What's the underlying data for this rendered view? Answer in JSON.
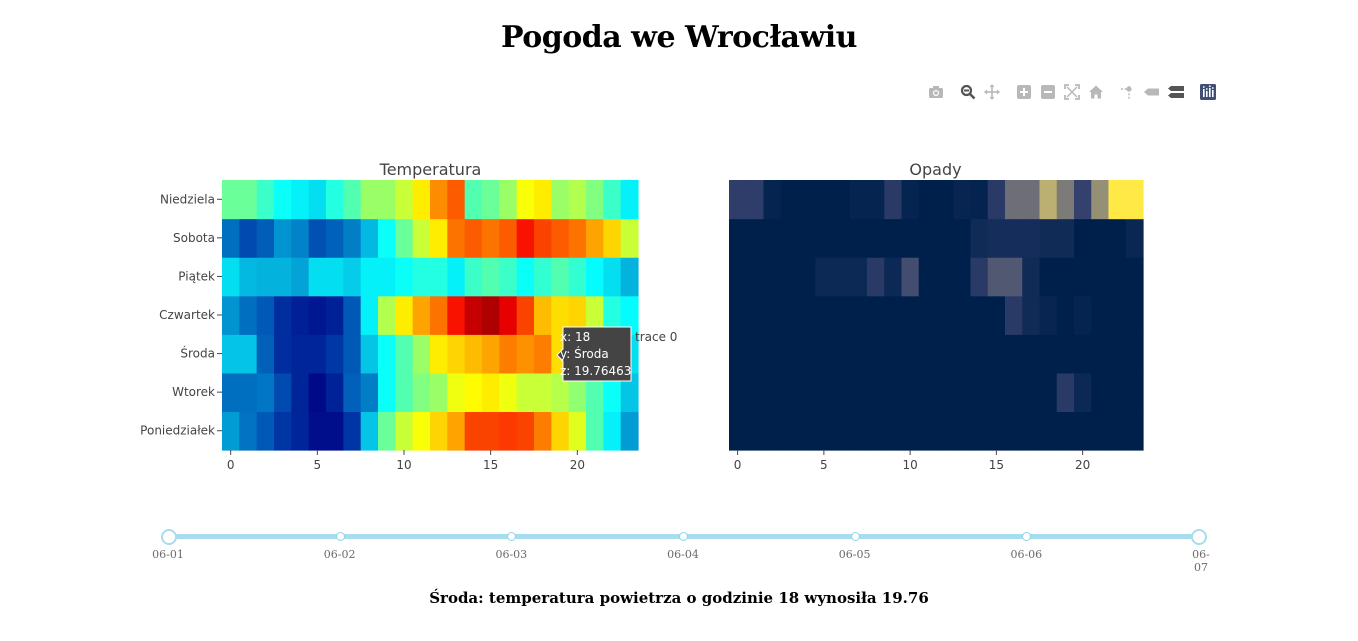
{
  "title": "Pogoda we Wrocławiu",
  "caption": "Środa: temperatura powietrza o godzinie 18 wynosiła 19.76",
  "modebar": [
    {
      "name": "camera-icon",
      "tip": "Download plot as a png"
    },
    {
      "name": "zoom-icon",
      "tip": "Zoom"
    },
    {
      "name": "pan-icon",
      "tip": "Pan"
    },
    {
      "name": "zoom-in-icon",
      "tip": "Zoom in"
    },
    {
      "name": "zoom-out-icon",
      "tip": "Zoom out"
    },
    {
      "name": "autoscale-icon",
      "tip": "Autoscale"
    },
    {
      "name": "home-icon",
      "tip": "Reset axes"
    },
    {
      "name": "spike-lines-icon",
      "tip": "Toggle Spike Lines"
    },
    {
      "name": "hover-closest-icon",
      "tip": "Show closest data on hover"
    },
    {
      "name": "hover-compare-icon",
      "tip": "Compare data on hover"
    },
    {
      "name": "plotly-logo-icon",
      "tip": "Produced with Plotly"
    }
  ],
  "slider": {
    "labels": [
      "06-01",
      "06-02",
      "06-03",
      "06-04",
      "06-05",
      "06-06",
      "06-07"
    ],
    "active": 0
  },
  "hover": {
    "x_line": "x: 18",
    "y_line": "y: Środa",
    "z_line": "z: 19.76463",
    "trace": "trace 0"
  },
  "chart_data": [
    {
      "type": "heatmap",
      "title": "Temperatura",
      "colorscale": "Jet",
      "zrange": [
        4,
        25
      ],
      "x": [
        0,
        1,
        2,
        3,
        4,
        5,
        6,
        7,
        8,
        9,
        10,
        11,
        12,
        13,
        14,
        15,
        16,
        17,
        18,
        19,
        20,
        21,
        22,
        23
      ],
      "xticks": [
        0,
        5,
        10,
        15,
        20
      ],
      "y": [
        "Poniedziałek",
        "Wtorek",
        "Środa",
        "Czwartek",
        "Piątek",
        "Sobota",
        "Niedziela"
      ],
      "z": [
        [
          9.2,
          8.1,
          7.4,
          6.3,
          5.6,
          4.6,
          4.6,
          6.3,
          10.3,
          14.0,
          16.0,
          17.0,
          18.0,
          19.0,
          21.0,
          21.0,
          21.2,
          21.0,
          19.8,
          18.0,
          16.5,
          13.5,
          11.5,
          9.2
        ],
        [
          8.0,
          8.0,
          8.2,
          7.0,
          5.6,
          4.4,
          5.5,
          7.6,
          8.4,
          12.0,
          13.5,
          14.5,
          15.0,
          16.8,
          17.2,
          17.5,
          16.8,
          16.0,
          16.0,
          15.6,
          14.8,
          13.5,
          12.0,
          10.3
        ],
        [
          10.3,
          10.3,
          7.6,
          6.0,
          5.6,
          5.6,
          6.4,
          7.4,
          10.3,
          12.0,
          13.5,
          15.0,
          17.5,
          18.0,
          18.5,
          19.0,
          19.8,
          19.4,
          19.8,
          17.8,
          16.5,
          14.6,
          12.0,
          11.0
        ],
        [
          9.0,
          8.0,
          7.4,
          6.0,
          5.4,
          5.0,
          5.4,
          7.4,
          11.5,
          15.5,
          17.5,
          19.0,
          20.0,
          22.0,
          23.5,
          24.0,
          22.8,
          21.0,
          18.5,
          17.8,
          18.0,
          16.0,
          12.5,
          11.8
        ],
        [
          11.0,
          10.0,
          9.8,
          9.8,
          9.4,
          11.0,
          11.0,
          10.5,
          11.5,
          11.5,
          12.0,
          12.5,
          12.5,
          11.5,
          13.0,
          13.5,
          13.0,
          12.0,
          12.8,
          13.5,
          12.8,
          11.8,
          11.0,
          9.8
        ],
        [
          8.0,
          7.0,
          7.5,
          9.0,
          8.5,
          7.2,
          7.6,
          8.4,
          10.0,
          12.0,
          14.0,
          16.0,
          17.5,
          20.0,
          20.5,
          20.0,
          20.5,
          22.0,
          21.0,
          20.5,
          20.0,
          19.0,
          18.0,
          16.0
        ],
        [
          14.0,
          14.0,
          13.0,
          12.0,
          11.5,
          11.0,
          12.5,
          13.5,
          15.0,
          15.0,
          16.0,
          17.5,
          19.5,
          20.5,
          13.5,
          14.0,
          15.0,
          17.0,
          17.5,
          15.0,
          15.5,
          14.5,
          13.0,
          11.5
        ]
      ]
    },
    {
      "type": "heatmap",
      "title": "Opady",
      "colorscale": "Cividis",
      "zrange": [
        0,
        1
      ],
      "x": [
        0,
        1,
        2,
        3,
        4,
        5,
        6,
        7,
        8,
        9,
        10,
        11,
        12,
        13,
        14,
        15,
        16,
        17,
        18,
        19,
        20,
        21,
        22,
        23
      ],
      "xticks": [
        0,
        5,
        10,
        15,
        20
      ],
      "y": [
        "Poniedziałek",
        "Wtorek",
        "Środa",
        "Czwartek",
        "Piątek",
        "Sobota",
        "Niedziela"
      ],
      "z": [
        [
          0,
          0,
          0,
          0,
          0,
          0,
          0,
          0,
          0,
          0,
          0,
          0,
          0,
          0,
          0,
          0,
          0,
          0,
          0,
          0,
          0,
          0,
          0,
          0
        ],
        [
          0,
          0,
          0,
          0,
          0,
          0,
          0,
          0,
          0,
          0,
          0,
          0,
          0,
          0,
          0,
          0,
          0,
          0,
          0,
          0.2,
          0.06,
          0,
          0,
          0
        ],
        [
          0,
          0,
          0,
          0,
          0,
          0,
          0,
          0,
          0,
          0,
          0,
          0,
          0,
          0,
          0,
          0,
          0,
          0,
          0,
          0,
          0,
          0,
          0,
          0
        ],
        [
          0,
          0,
          0,
          0,
          0,
          0,
          0,
          0,
          0,
          0,
          0,
          0,
          0,
          0,
          0,
          0,
          0.2,
          0.08,
          0.04,
          0,
          0.03,
          0,
          0,
          0
        ],
        [
          0,
          0,
          0,
          0,
          0,
          0.06,
          0.06,
          0.06,
          0.2,
          0.06,
          0.3,
          0,
          0,
          0,
          0.2,
          0.35,
          0.35,
          0.08,
          0,
          0,
          0,
          0,
          0,
          0
        ],
        [
          0,
          0,
          0,
          0,
          0,
          0,
          0,
          0,
          0,
          0,
          0,
          0,
          0,
          0,
          0.08,
          0.1,
          0.1,
          0.1,
          0.08,
          0.08,
          0,
          0,
          0,
          0.05
        ],
        [
          0.22,
          0.22,
          0.03,
          0,
          0,
          0,
          0,
          0.03,
          0.03,
          0.2,
          0.03,
          0,
          0,
          0.04,
          0.02,
          0.2,
          0.45,
          0.45,
          0.75,
          0.5,
          0.25,
          0.6,
          1.0,
          1.0
        ]
      ]
    }
  ]
}
